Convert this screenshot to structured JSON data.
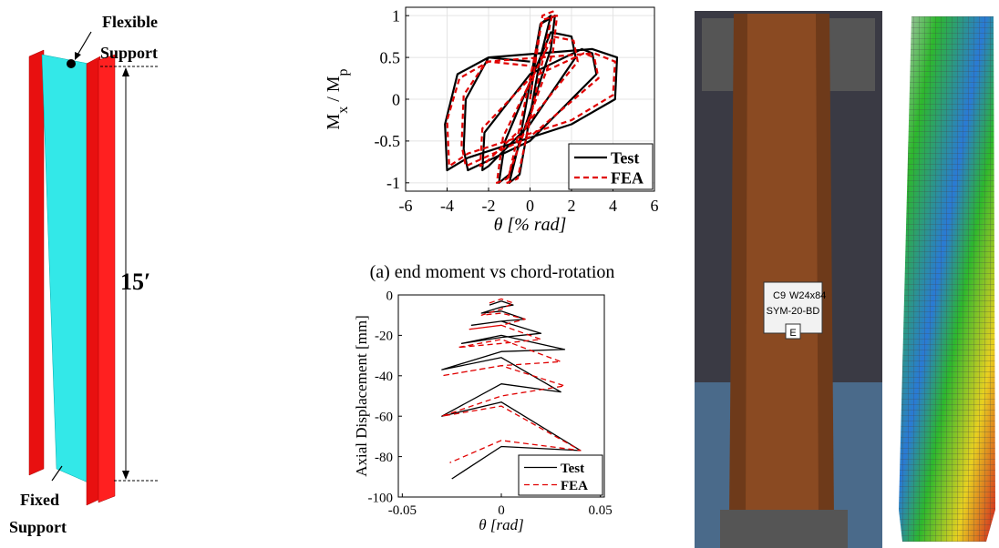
{
  "figure": {
    "top_label": [
      "Flexible",
      "Support"
    ],
    "length": "15′",
    "bottom_label": [
      "Fixed",
      "Support"
    ],
    "caption_a": "(a) end moment vs chord-rotation",
    "placard": [
      "C9",
      "W24x84",
      "SYM-20-BD",
      "E"
    ]
  },
  "chart_data": [
    {
      "type": "line",
      "xlabel": "θ [% rad]",
      "ylabel": [
        "M",
        "x",
        " / M",
        "p"
      ],
      "xlim": [
        -6,
        6
      ],
      "ylim": [
        -1.1,
        1.1
      ],
      "xticks": [
        -6,
        -4,
        -2,
        0,
        2,
        4,
        6
      ],
      "yticks": [
        -1,
        -0.5,
        0,
        0.5,
        1
      ],
      "grid": true,
      "legend": "lower right",
      "series": [
        {
          "name": "Test",
          "color": "#000000",
          "dash": false,
          "x": [
            0,
            0.5,
            1,
            0.5,
            -0.5,
            -1,
            -0.5,
            0.5,
            1.2,
            1,
            -1,
            -1.5,
            -1.2,
            1,
            2,
            2.2,
            0,
            -2,
            -2.3,
            -2.2,
            0,
            2.5,
            3,
            3.2,
            0,
            -3,
            -3.2,
            -3.1,
            -2,
            3,
            4.2,
            4.1,
            2,
            -3,
            -4,
            -4.1,
            -3.5,
            -2,
            0
          ],
          "values": [
            0,
            0.9,
            1,
            0.5,
            -0.9,
            -1,
            -0.5,
            0.9,
            1,
            0.6,
            -0.9,
            -1,
            -0.5,
            0.8,
            0.75,
            0.5,
            -0.3,
            -0.8,
            -0.85,
            -0.4,
            0.3,
            0.6,
            0.55,
            0.3,
            -0.5,
            -0.85,
            -0.6,
            0,
            0.5,
            0.6,
            0.5,
            0,
            -0.3,
            -0.7,
            -0.85,
            -0.3,
            0.3,
            0.5,
            0.45
          ]
        },
        {
          "name": "FEA",
          "color": "#e00000",
          "dash": true,
          "x": [
            0,
            0.6,
            1.1,
            0.6,
            -0.6,
            -1.1,
            -0.6,
            0.6,
            1.3,
            1.1,
            -1.1,
            -1.6,
            -1.3,
            1.1,
            2.1,
            2.3,
            0,
            -2.1,
            -2.4,
            -2.3,
            0,
            2.6,
            3.1,
            3.3,
            0,
            -3.1,
            -3.3,
            -3.2,
            -2.1,
            3.1,
            4.1,
            4,
            2,
            -3,
            -3.9,
            -4,
            -3.4,
            -2,
            0
          ],
          "values": [
            0,
            1,
            1.05,
            0.45,
            -0.95,
            -1,
            -0.45,
            0.95,
            1,
            0.55,
            -0.95,
            -1,
            -0.45,
            0.75,
            0.7,
            0.45,
            -0.25,
            -0.75,
            -0.8,
            -0.35,
            0.25,
            0.55,
            0.5,
            0.25,
            -0.45,
            -0.8,
            -0.55,
            0.05,
            0.45,
            0.55,
            0.45,
            0.05,
            -0.25,
            -0.65,
            -0.8,
            -0.25,
            0.25,
            0.45,
            0.4
          ]
        }
      ]
    },
    {
      "type": "line",
      "xlabel": "θ [rad]",
      "ylabel": [
        "Axial Displacement [mm]"
      ],
      "xlim": [
        -0.052,
        0.052
      ],
      "ylim": [
        -100,
        0
      ],
      "xticks": [
        -0.05,
        0,
        0.05
      ],
      "yticks": [
        -100,
        -80,
        -60,
        -40,
        -20,
        0
      ],
      "grid": false,
      "legend": "lower right",
      "series": [
        {
          "name": "Test",
          "color": "#000000",
          "dash": false,
          "x": [
            -0.006,
            0,
            0.006,
            0,
            -0.01,
            0,
            0.012,
            0,
            -0.015,
            0,
            0.02,
            0,
            -0.02,
            0,
            0.032,
            0,
            -0.03,
            0,
            0.03,
            0,
            -0.03,
            0,
            0.04,
            0,
            -0.025
          ],
          "values": [
            -5,
            -3,
            -5,
            -6,
            -9,
            -8,
            -12,
            -13,
            -15,
            -13,
            -19,
            -21,
            -24,
            -20,
            -27,
            -28,
            -37,
            -31,
            -48,
            -44,
            -60,
            -53,
            -77,
            -75,
            -91
          ]
        },
        {
          "name": "FEA",
          "color": "#e00000",
          "dash": true,
          "x": [
            -0.006,
            0,
            0.006,
            0,
            -0.01,
            0,
            0.012,
            0,
            -0.016,
            0,
            0.02,
            0,
            -0.022,
            0,
            0.03,
            0,
            -0.03,
            0,
            0.032,
            0,
            -0.03,
            0,
            0.04,
            0,
            -0.026
          ],
          "values": [
            -4,
            -2,
            -4,
            -7,
            -10,
            -9,
            -12,
            -15,
            -17,
            -15,
            -22,
            -24,
            -26,
            -22,
            -33,
            -35,
            -40,
            -35,
            -45,
            -50,
            -60,
            -55,
            -77,
            -72,
            -83
          ]
        }
      ]
    }
  ]
}
